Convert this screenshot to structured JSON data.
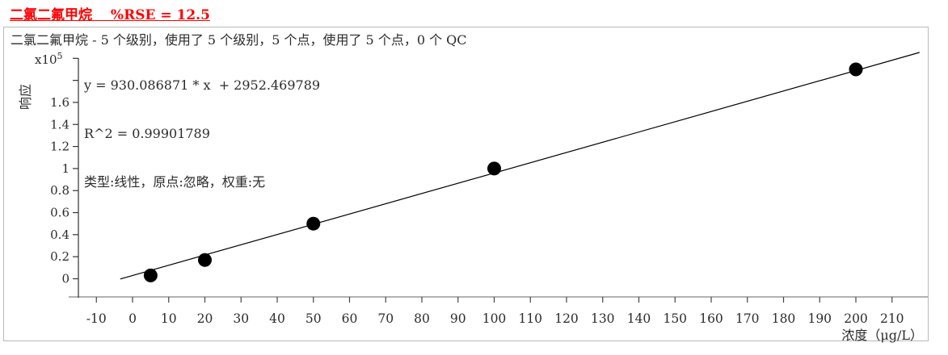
{
  "title_line": "二氯二氟甲烷　 %RSE = 12.5",
  "title_color": "#ff0000",
  "chart_data": {
    "type": "scatter",
    "header": "二氯二氟甲烷 - 5 个级别，使用了 5 个级别，5 个点，使用了 5 个点，0 个 QC",
    "equation": "y = 930.086871 * x  + 2952.469789",
    "r_squared": "R^2 = 0.99901789",
    "fit_info": "类型:线性，原点:忽略，权重:无",
    "xlabel": "浓度（μg/L）",
    "ylabel": "响应",
    "y_scale_base": "x10",
    "y_scale_exp": "5",
    "x_tick_labels": [
      "-10",
      "0",
      "10",
      "20",
      "30",
      "40",
      "50",
      "60",
      "70",
      "80",
      "90",
      "100",
      "110",
      "120",
      "130",
      "140",
      "150",
      "160",
      "170",
      "180",
      "190",
      "200",
      "210"
    ],
    "y_tick_labels": [
      "0",
      "0.2",
      "0.4",
      "0.6",
      "0.8",
      "1",
      "1.2",
      "1.4",
      "1.6"
    ],
    "y_minor_ticks": [
      1.8,
      2.0
    ],
    "xlim": [
      -15,
      220
    ],
    "ylim": [
      -0.16,
      2.0
    ],
    "grid": false,
    "points": [
      {
        "x": 5,
        "y_e5": 0.03
      },
      {
        "x": 20,
        "y_e5": 0.17
      },
      {
        "x": 50,
        "y_e5": 0.5
      },
      {
        "x": 100,
        "y_e5": 1.0
      },
      {
        "x": 200,
        "y_e5": 1.9
      }
    ],
    "fit": {
      "slope": 930.086871,
      "intercept": 2952.469789,
      "response_scale": 100000,
      "x_draw_range": [
        -3.4,
        217.6
      ]
    },
    "point_color": "#000000",
    "line_color": "#000000"
  }
}
